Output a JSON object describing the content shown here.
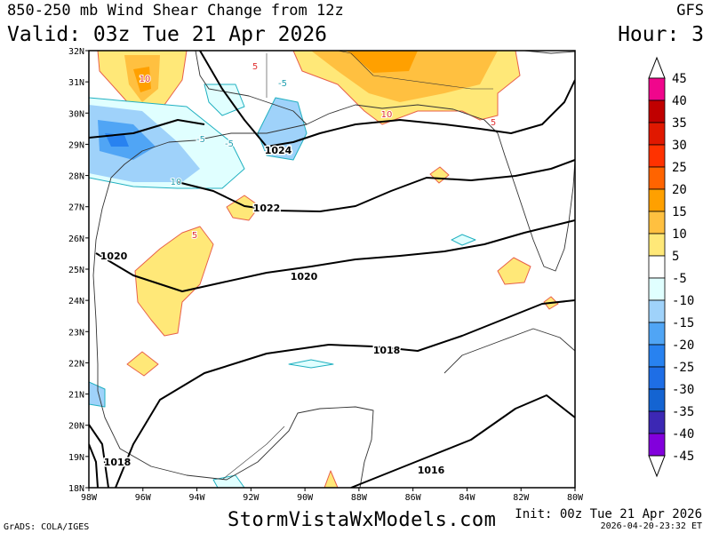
{
  "header": {
    "title": "850-250 mb Wind Shear Change from 12z",
    "valid": "Valid: 03z Tue 21 Apr 2026",
    "model": "GFS",
    "hour": "Hour: 3"
  },
  "footer": {
    "site": "StormVistaWxModels.com",
    "init": "Init: 00z Tue 21 Apr 2026",
    "timestamp": "2026-04-20-23:32 ET",
    "credit": "GrADS: COLA/IGES"
  },
  "map": {
    "lat_labels": [
      "32N",
      "31N",
      "30N",
      "29N",
      "28N",
      "27N",
      "26N",
      "25N",
      "24N",
      "23N",
      "22N",
      "21N",
      "20N",
      "19N",
      "18N"
    ],
    "lon_labels": [
      "98W",
      "96W",
      "94W",
      "92W",
      "90W",
      "88W",
      "86W",
      "84W",
      "82W",
      "80W"
    ],
    "isobar_labels": [
      "1024",
      "1022",
      "1020",
      "1020",
      "1018",
      "1016",
      "1018"
    ],
    "shear_labels": [
      "5",
      "-5",
      "10",
      "-5",
      "-5",
      "10",
      "5",
      "5",
      "10"
    ]
  },
  "colorbar": {
    "levels": [
      "45",
      "40",
      "35",
      "30",
      "25",
      "20",
      "15",
      "10",
      "5",
      "-5",
      "-10",
      "-15",
      "-20",
      "-25",
      "-30",
      "-35",
      "-40",
      "-45"
    ],
    "colors": [
      "#f0068c",
      "#c00000",
      "#e01800",
      "#ff3200",
      "#ff6400",
      "#ffa000",
      "#ffc040",
      "#ffe878",
      "#ffffff",
      "#e0ffff",
      "#9fd2fa",
      "#50a5f5",
      "#2882f0",
      "#1e6ee6",
      "#1464d2",
      "#3c28b4",
      "#8200dc"
    ]
  }
}
